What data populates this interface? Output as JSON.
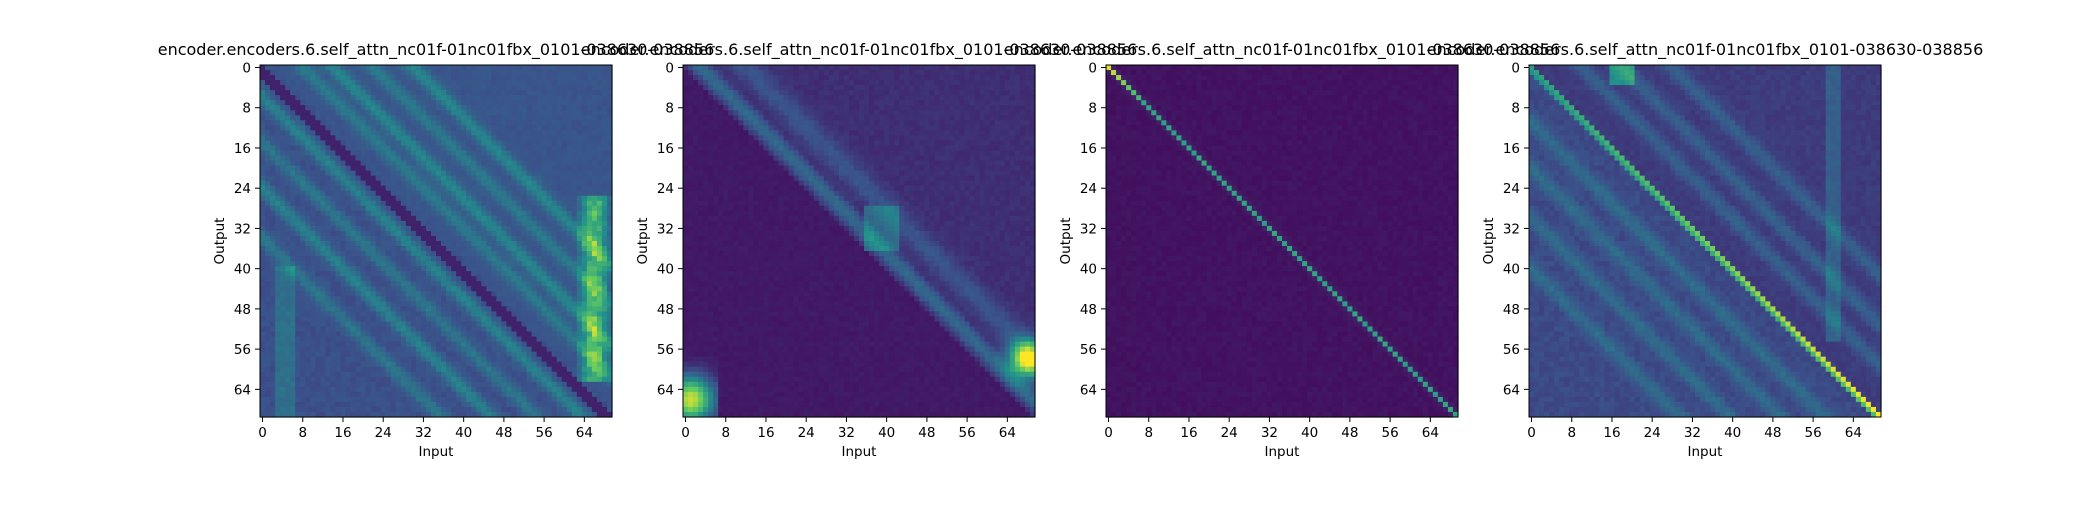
{
  "figure": {
    "background": "#ffffff"
  },
  "chart_data": [
    {
      "type": "heatmap",
      "title": "encoder.encoders.6.self_attn_nc01f-01nc01fbx_0101-038630-038856",
      "xlabel": "Input",
      "ylabel": "Output",
      "xticks": [
        "0",
        "8",
        "16",
        "24",
        "32",
        "40",
        "48",
        "56",
        "64"
      ],
      "yticks": [
        "0",
        "8",
        "16",
        "24",
        "32",
        "40",
        "48",
        "56",
        "64"
      ],
      "size": 70,
      "colormap": "viridis",
      "pattern": "many parallel diagonal bands below and above the main diagonal, bright yellow streaks near input 64-68 for outputs 28-60",
      "head": 0
    },
    {
      "type": "heatmap",
      "title": "encoder.encoders.6.self_attn_nc01f-01nc01fbx_0101-038630-038856",
      "xlabel": "Input",
      "ylabel": "Output",
      "xticks": [
        "0",
        "8",
        "16",
        "24",
        "32",
        "40",
        "48",
        "56",
        "64"
      ],
      "yticks": [
        "0",
        "8",
        "16",
        "24",
        "32",
        "40",
        "48",
        "56",
        "64"
      ],
      "size": 70,
      "colormap": "viridis",
      "pattern": "band just above the main diagonal, bright corners at bottom-left and near (68,58)",
      "head": 1
    },
    {
      "type": "heatmap",
      "title": "encoder.encoders.6.self_attn_nc01f-01nc01fbx_0101-038630-038856",
      "xlabel": "Input",
      "ylabel": "Output",
      "xticks": [
        "0",
        "8",
        "16",
        "24",
        "32",
        "40",
        "48",
        "56",
        "64"
      ],
      "yticks": [
        "0",
        "8",
        "16",
        "24",
        "32",
        "40",
        "48",
        "56",
        "64"
      ],
      "size": 70,
      "colormap": "viridis",
      "pattern": "sharp main diagonal, yellow at top-left fading to teal",
      "head": 2
    },
    {
      "type": "heatmap",
      "title": "encoder.encoders.6.self_attn_nc01f-01nc01fbx_0101-038630-038856",
      "xlabel": "Input",
      "ylabel": "Output",
      "xticks": [
        "0",
        "8",
        "16",
        "24",
        "32",
        "40",
        "48",
        "56",
        "64"
      ],
      "yticks": [
        "0",
        "8",
        "16",
        "24",
        "32",
        "40",
        "48",
        "56",
        "64"
      ],
      "size": 70,
      "colormap": "viridis",
      "pattern": "bright main diagonal intensifying toward bottom-right, multiple parallel bands below it",
      "head": 3
    }
  ]
}
